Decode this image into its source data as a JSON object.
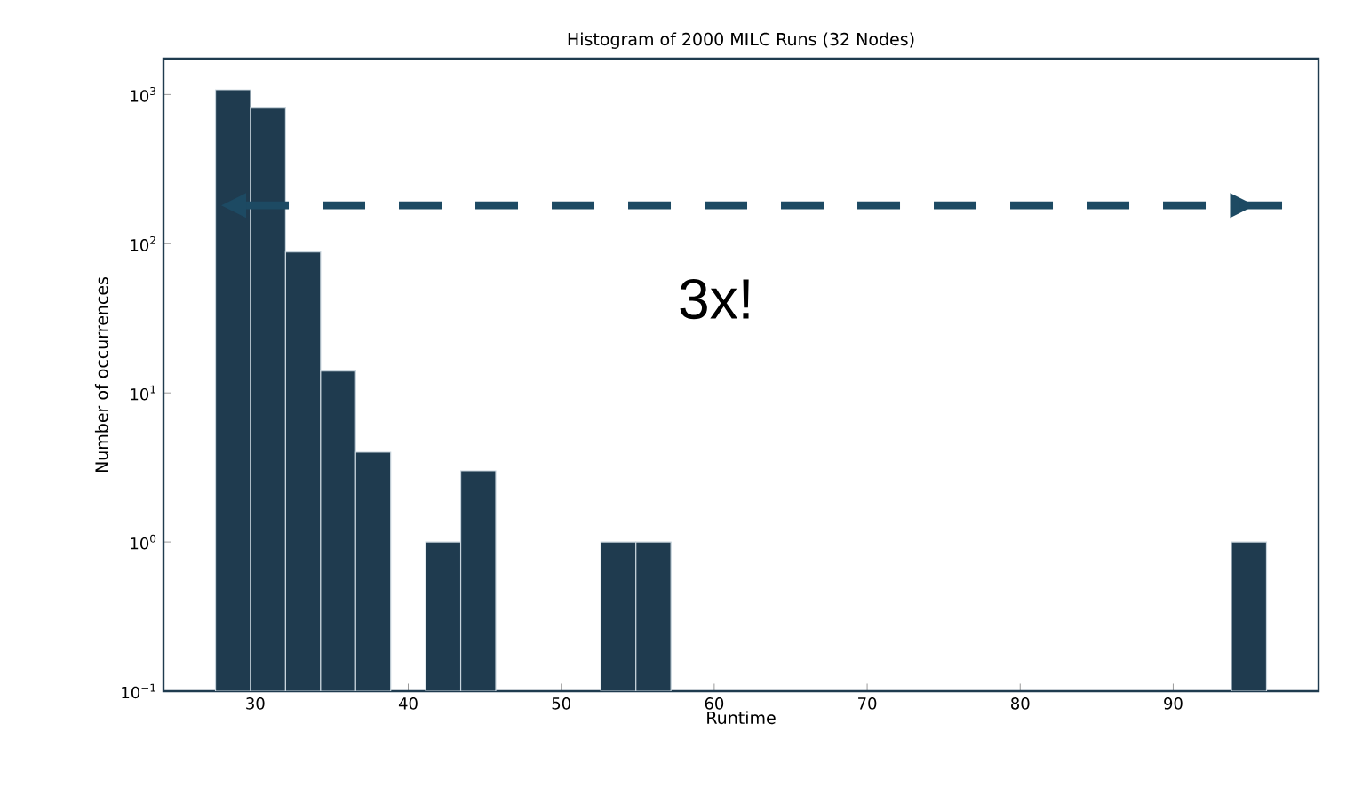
{
  "chart_data": {
    "type": "histogram",
    "title": "Histogram of 2000 MILC Runs (32 Nodes)",
    "xlabel": "Runtime",
    "ylabel": "Number of occurrences",
    "bins": [
      27.4,
      29.69,
      31.98,
      34.27,
      36.56,
      38.85,
      41.14,
      43.43,
      45.72,
      48.01,
      50.3,
      52.59,
      54.88,
      57.17,
      59.46,
      61.75,
      64.04,
      66.33,
      68.62,
      70.91,
      73.2,
      75.49,
      77.78,
      80.07,
      82.36,
      84.65,
      86.94,
      89.23,
      91.52,
      93.81,
      96.1
    ],
    "values": [
      1077,
      810,
      88,
      14,
      4,
      null,
      1,
      3,
      null,
      null,
      null,
      1,
      1,
      null,
      null,
      null,
      null,
      null,
      null,
      null,
      null,
      null,
      null,
      null,
      null,
      null,
      null,
      null,
      null,
      1
    ],
    "color": "#1f3b4f",
    "log": "y",
    "xlim": [
      24.0,
      99.5
    ],
    "ylim": [
      0.1,
      1740
    ],
    "xticks": [
      30,
      40,
      50,
      60,
      70,
      80,
      90
    ],
    "yticks": [
      {
        "value": 0.1,
        "label": "10$^{−1}$"
      },
      {
        "value": 1,
        "label": "10$^{0}$"
      },
      {
        "value": 10,
        "label": "10$^{1}$"
      },
      {
        "value": 100,
        "label": "10$^{2}$"
      },
      {
        "value": 1000,
        "label": "10$^{3}$"
      }
    ],
    "annotations": [
      "3x!"
    ],
    "grid": false
  }
}
